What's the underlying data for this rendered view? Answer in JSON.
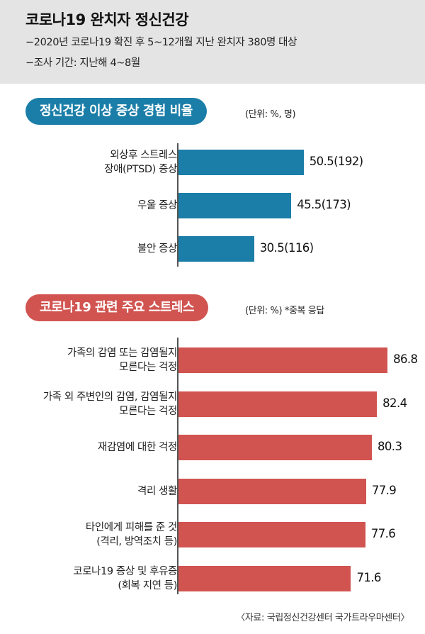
{
  "header": {
    "title": "코로나19 완치자 정신건강",
    "lines": [
      "−2020년 코로나19 확진 후 5~12개월 지난 완치자 380명 대상",
      "−조사 기간: 지난해 4~8월"
    ]
  },
  "colors": {
    "blue": "#1b7ea8",
    "red": "#d15450"
  },
  "source": "〈자료: 국립정신건강센터 국가트라우마센터〉",
  "chart_data": [
    {
      "type": "bar",
      "orientation": "horizontal",
      "title": "정신건강 이상 증상 경험 비율",
      "unit": "(단위: %, 명)",
      "categories": [
        [
          "외상후 스트레스",
          "장애(PTSD) 증상"
        ],
        [
          "우울 증상"
        ],
        [
          "불안 증상"
        ]
      ],
      "values": [
        50.5,
        45.5,
        30.5
      ],
      "labels": [
        "50.5(192)",
        "45.5(173)",
        "30.5(116)"
      ],
      "counts": [
        192,
        173,
        116
      ],
      "color": "#1b7ea8"
    },
    {
      "type": "bar",
      "orientation": "horizontal",
      "title": "코로나19 관련 주요 스트레스",
      "unit": "(단위: %) *중복 응답",
      "categories": [
        [
          "가족의 감염 또는 감염될지",
          "모른다는 걱정"
        ],
        [
          "가족 외 주변인의 감염, 감염될지",
          "모른다는 걱정"
        ],
        [
          "재감염에 대한 걱정"
        ],
        [
          "격리 생활"
        ],
        [
          "타인에게 피해를 준 것",
          "(격리, 방역조치 등)"
        ],
        [
          "코로나19 증상 및 후유증",
          "(회복 지연 등)"
        ]
      ],
      "values": [
        86.8,
        82.4,
        80.3,
        77.9,
        77.6,
        71.6
      ],
      "labels": [
        "86.8",
        "82.4",
        "80.3",
        "77.9",
        "77.6",
        "71.6"
      ],
      "color": "#d15450"
    }
  ]
}
